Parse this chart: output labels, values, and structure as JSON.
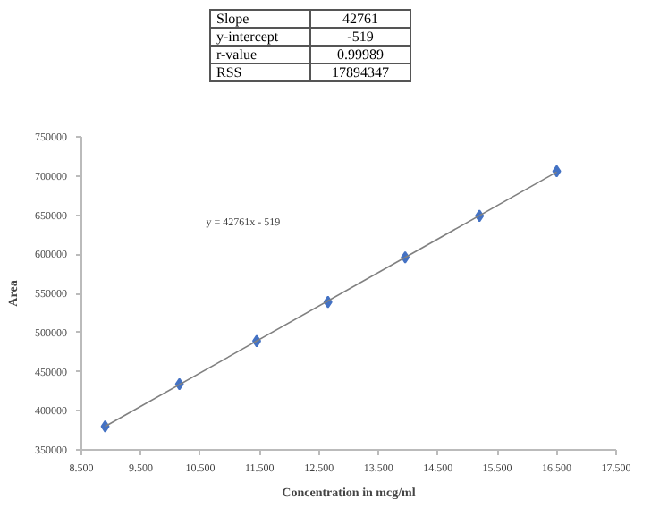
{
  "chart_data": {
    "type": "scatter",
    "xlabel": "Concentration in mcg/ml",
    "ylabel": "Area",
    "annotations": [
      "y = 42761x - 519",
      "Slope",
      "42761",
      "y-intercept",
      "-519",
      "r-value",
      "0.99989",
      "RSS",
      "17894347"
    ],
    "series": [
      {
        "color": "#4472c4",
        "marker": "diamond",
        "x": [
          8.9,
          10.15,
          11.45,
          12.65,
          13.95,
          15.2,
          16.5
        ],
        "values": [
          380000,
          434000,
          489000,
          539000,
          596000,
          649000,
          706000
        ]
      },
      {
        "type": "line",
        "color": "#808080",
        "x": [
          8.9,
          16.5
        ],
        "values": [
          380000,
          705000
        ]
      }
    ],
    "xlim": [
      8.5,
      17.5
    ],
    "xticks": [
      {
        "value": 8.5,
        "label": "8.500"
      },
      {
        "value": 9.5,
        "label": "9.500"
      },
      {
        "value": 10.5,
        "label": "10.500"
      },
      {
        "value": 11.5,
        "label": "11.500"
      },
      {
        "value": 12.5,
        "label": "12.500"
      },
      {
        "value": 13.5,
        "label": "13.500"
      },
      {
        "value": 14.5,
        "label": "14.500"
      },
      {
        "value": 15.5,
        "label": "15.500"
      },
      {
        "value": 16.5,
        "label": "16.500"
      },
      {
        "value": 17.5,
        "label": "17.500"
      }
    ],
    "ylim": [
      350000,
      750000
    ],
    "yticks": [
      350000,
      400000,
      450000,
      500000,
      550000,
      600000,
      650000,
      700000,
      750000
    ],
    "grid": false
  }
}
